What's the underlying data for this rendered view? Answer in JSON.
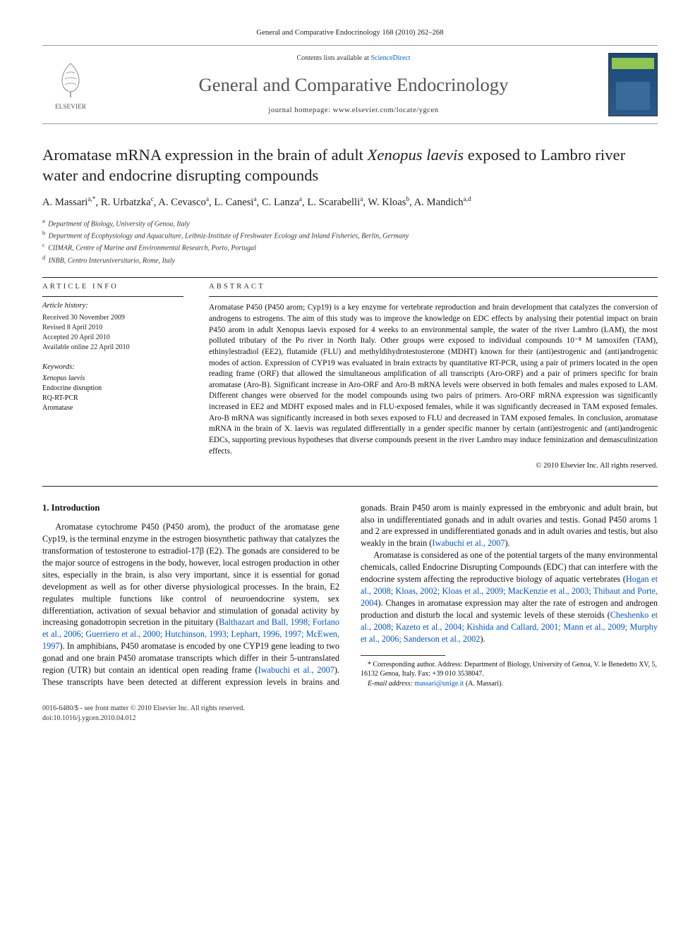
{
  "top_citation": "General and Comparative Endocrinology 168 (2010) 262–268",
  "header": {
    "contents_prefix": "Contents lists available at ",
    "contents_link": "ScienceDirect",
    "journal_name": "General and Comparative Endocrinology",
    "homepage_label": "journal homepage: ",
    "homepage_url": "www.elsevier.com/locate/ygcen",
    "publisher": "ELSEVIER"
  },
  "title": "Aromatase mRNA expression in the brain of adult <em>Xenopus laevis</em> exposed to Lambro river water and endocrine disrupting compounds",
  "authors_html": "A. Massari<sup>a,*</sup>, R. Urbatzka<sup>c</sup>, A. Cevasco<sup>a</sup>, L. Canesi<sup>a</sup>, C. Lanza<sup>a</sup>, L. Scarabelli<sup>a</sup>, W. Kloas<sup>b</sup>, A. Mandich<sup>a,d</sup>",
  "affiliations": [
    "<sup>a</sup> Department of Biology, University of Genoa, Italy",
    "<sup>b</sup> Department of Ecophysiology and Aquaculture, Leibniz-Institute of Freshwater Ecology and Inland Fisheries, Berlin, Germany",
    "<sup>c</sup> CIIMAR, Centre of Marine and Environmental Research, Porto, Portugal",
    "<sup>d</sup> INBB, Centro Interuniversitario, Rome, Italy"
  ],
  "article_info": {
    "label": "article info",
    "history_label": "Article history:",
    "history": [
      "Received 30 November 2009",
      "Revised 8 April 2010",
      "Accepted 20 April 2010",
      "Available online 22 April 2010"
    ],
    "keywords_label": "Keywords:",
    "keywords": [
      "<em>Xenopus laevis</em>",
      "Endocrine disruption",
      "RQ-RT-PCR",
      "Aromatase"
    ]
  },
  "abstract": {
    "label": "abstract",
    "text": "Aromatase P450 (P450 arom; Cyp19) is a key enzyme for vertebrate reproduction and brain development that catalyzes the conversion of androgens to estrogens. The aim of this study was to improve the knowledge on EDC effects by analysing their potential impact on brain P450 arom in adult Xenopus laevis exposed for 4 weeks to an environmental sample, the water of the river Lambro (LAM), the most polluted tributary of the Po river in North Italy. Other groups were exposed to individual compounds 10⁻⁸ M tamoxifen (TAM), ethinylestradiol (EE2), flutamide (FLU) and methyldihydrotestosterone (MDHT) known for their (anti)estrogenic and (anti)androgenic modes of action. Expression of CYP19 was evaluated in brain extracts by quantitative RT-PCR, using a pair of primers located in the open reading frame (ORF) that allowed the simultaneous amplification of all transcripts (Aro-ORF) and a pair of primers specific for brain aromatase (Aro-B). Significant increase in Aro-ORF and Aro-B mRNA levels were observed in both females and males exposed to LAM. Different changes were observed for the model compounds using two pairs of primers. Aro-ORF mRNA expression was significantly increased in EE2 and MDHT exposed males and in FLU-exposed females, while it was significantly decreased in TAM exposed females. Aro-B mRNA was significantly increased in both sexes exposed to FLU and decreased in TAM exposed females. In conclusion, aromatase mRNA in the brain of X. laevis was regulated differentially in a gender specific manner by certain (anti)estrogenic and (anti)androgenic EDCs, supporting previous hypotheses that diverse compounds present in the river Lambro may induce feminization and demasculinization effects.",
    "copyright": "© 2010 Elsevier Inc. All rights reserved."
  },
  "body": {
    "section_number": "1.",
    "section_title": "Introduction",
    "para1": "Aromatase cytochrome P450 (P450 arom), the product of the aromatase gene Cyp19, is the terminal enzyme in the estrogen biosynthetic pathway that catalyzes the transformation of testosterone to estradiol-17β (E2). The gonads are considered to be the major source of estrogens in the body, however, local estrogen production in other sites, especially in the brain, is also very important, since it is essential for gonad development as well as for other diverse physiological processes. In the brain, E2 regulates multiple functions like control of neuroendocrine system, sex differentiation, activation of sexual behavior and stimulation of gonadal activity by increasing gonadotropin secretion in the pituitary (",
    "para1_ref": "Balthazart and Ball, 1998; Forlano et al., 2006; Guerriero et al., 2000; Hutchinson, 1993; Lephart, 1996, 1997; McEwen, 1997",
    "para1_tail": "). In",
    "para2_lead": "amphibians, P450 aromatase is encoded by one CYP19 gene leading to two gonad and one brain P450 aromatase transcripts which differ in their 5-untranslated region (UTR) but contain an identical open reading frame (",
    "para2_ref1": "Iwabuchi et al., 2007",
    "para2_mid": "). These transcripts have been detected at different expression levels in brains and gonads. Brain P450 arom is mainly expressed in the embryonic and adult brain, but also in undifferentiated gonads and in adult ovaries and testis. Gonad P450 aroms 1 and 2 are expressed in undifferentiated gonads and in adult ovaries and testis, but also weakly in the brain (",
    "para2_ref2": "Iwabuchi et al., 2007",
    "para2_tail": ").",
    "para3_lead": "Aromatase is considered as one of the potential targets of the many environmental chemicals, called Endocrine Disrupting Compounds (EDC) that can interfere with the endocrine system affecting the reproductive biology of aquatic vertebrates (",
    "para3_ref1": "Hogan et al., 2008; Kloas, 2002; Kloas et al., 2009; MacKenzie et al., 2003; Thibaut and Porte, 2004",
    "para3_mid": "). Changes in aromatase expression may alter the rate of estrogen and androgen production and disturb the local and systemic levels of these steroids (",
    "para3_ref2": "Cheshenko et al., 2008; Kazeto et al., 2004; Kishida and Callard, 2001; Mann et al., 2009; Murphy et al., 2006; Sanderson et al., 2002",
    "para3_tail": ")."
  },
  "footnote": {
    "corresponding": "* Corresponding author. Address: Department of Biology, University of Genoa, V. le Benedetto XV, 5, 16132 Genoa, Italy. Fax: +39 010 3538047.",
    "email_label": "E-mail address: ",
    "email": "massari@unige.it",
    "email_tail": " (A. Massari)."
  },
  "footer": {
    "front_matter": "0016-6480/$ - see front matter © 2010 Elsevier Inc. All rights reserved.",
    "doi": "doi:10.1016/j.ygcen.2010.04.012"
  },
  "colors": {
    "link": "#0055cc",
    "text": "#111111",
    "rule": "#222222"
  }
}
